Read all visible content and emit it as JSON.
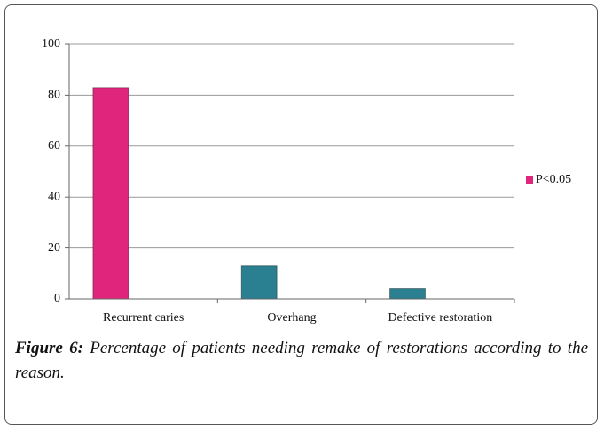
{
  "chart_data": {
    "type": "bar",
    "categories": [
      "Recurrent caries",
      "Overhang",
      "Defective restoration"
    ],
    "series": [
      {
        "name": "P<0.05",
        "color": "#e0267c",
        "point_colors": [
          "#e0267c",
          "#2a7f90",
          "#2a7f90"
        ],
        "values": [
          83,
          13,
          4
        ]
      }
    ],
    "ylim": [
      0,
      100
    ],
    "yticks": [
      0,
      20,
      40,
      60,
      80,
      100
    ],
    "grid": true,
    "legend": "right"
  },
  "caption": {
    "label": "Figure 6:",
    "text": "Percentage of patients needing remake of restorations according to the reason."
  }
}
